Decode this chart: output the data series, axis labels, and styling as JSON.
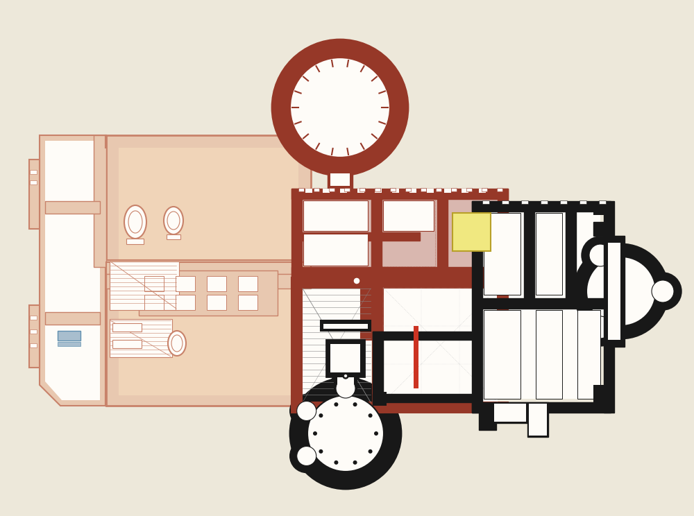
{
  "bg": "#ede8da",
  "ew": "#c8826a",
  "ef": "#e8c8b0",
  "pw": "#963828",
  "wh": "#fefcf8",
  "sf": "#f0d4b8",
  "nw": "#181818",
  "yf": "#f0e880",
  "bf": "#a8bece",
  "figsize": [
    10.0,
    7.44
  ],
  "dpi": 100
}
